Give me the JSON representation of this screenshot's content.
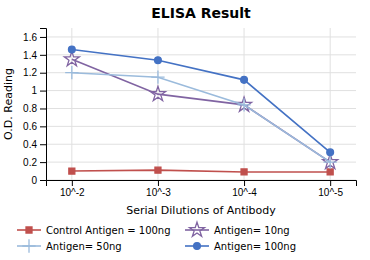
{
  "chart_data": {
    "type": "line",
    "title": "ELISA Result",
    "x_label": "Serial Dilutions  of Antibody",
    "y_label": "O.D. Reading",
    "categories": [
      "10^-2",
      "10^-3",
      "10^-4",
      "10^-5"
    ],
    "series": [
      {
        "name": "Control Antigen = 100ng",
        "color": "#c0504d",
        "marker": "square",
        "line_style": "solid",
        "values": [
          0.1,
          0.11,
          0.09,
          0.09
        ]
      },
      {
        "name": "Antigen= 10ng",
        "color": "#8064a2",
        "marker": "star",
        "line_style": "solid",
        "values": [
          1.35,
          0.96,
          0.84,
          0.2
        ]
      },
      {
        "name": "Antigen= 50ng",
        "color": "#9bbbdc",
        "marker": "plus",
        "line_style": "solid",
        "values": [
          1.2,
          1.15,
          0.84,
          0.2
        ]
      },
      {
        "name": "Antigen= 100ng",
        "color": "#4472c4",
        "marker": "circle",
        "line_style": "solid",
        "values": [
          1.46,
          1.34,
          1.12,
          0.31
        ]
      }
    ],
    "ylim": [
      0,
      1.7
    ],
    "yticks": [
      0,
      0.2,
      0.4,
      0.6,
      0.8,
      1,
      1.2,
      1.4,
      1.6
    ],
    "grid": true,
    "legend": "bottom"
  }
}
